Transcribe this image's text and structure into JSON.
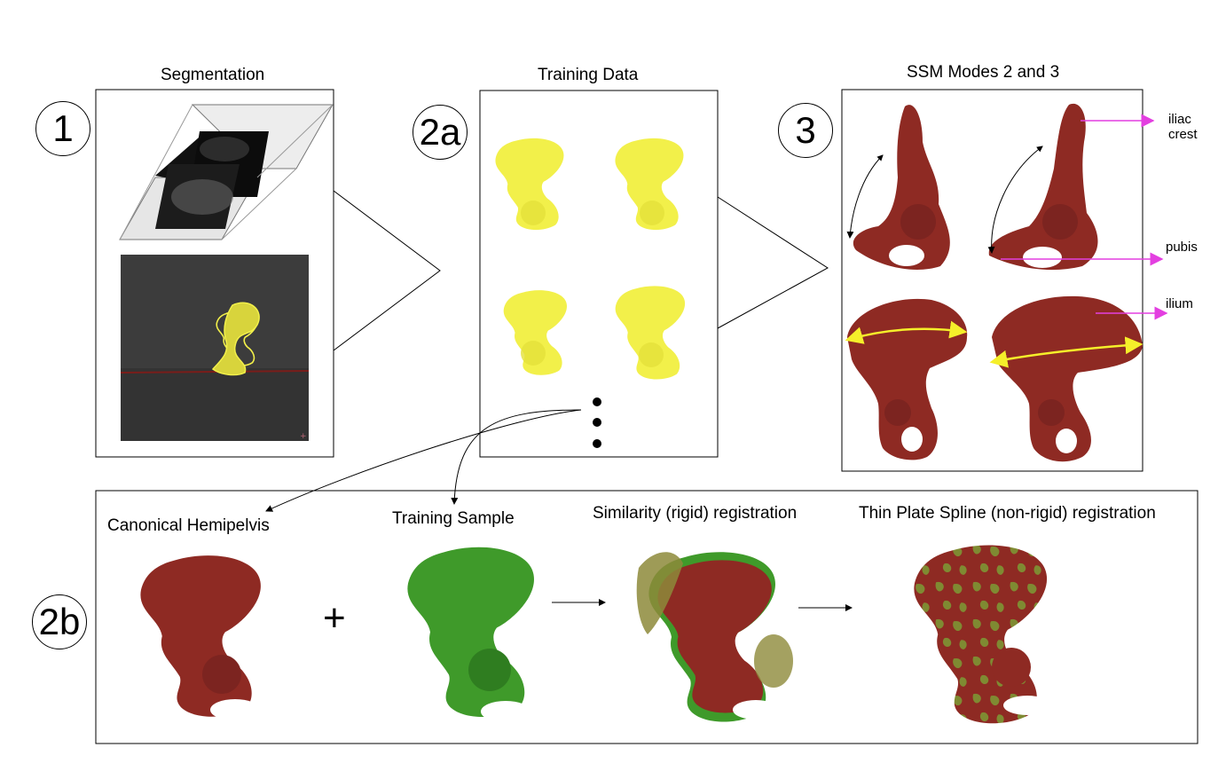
{
  "steps": {
    "step1": "1",
    "step2a": "2a",
    "step2b": "2b",
    "step3": "3"
  },
  "panels": {
    "segmentation": "Segmentation",
    "training_data": "Training Data",
    "ssm_modes": "SSM Modes 2 and 3"
  },
  "annotations": {
    "iliac_crest": "iliac\ncrest",
    "pubis": "pubis",
    "ilium": "ilium"
  },
  "pipeline": {
    "canonical": "Canonical Hemipelvis",
    "plus": "+",
    "training_sample": "Training Sample",
    "similarity": "Similarity (rigid) registration",
    "tps": "Thin Plate Spline (non-rigid) registration"
  },
  "colors": {
    "bone_red": "#8e2a23",
    "bone_yellow": "#f2f04a",
    "bone_green": "#3f9a2a",
    "blended_olive": "#8d8a3a",
    "arrow_magenta": "#e33fe0",
    "arrow_yellow": "#f5ef2a",
    "ct_background": "#3a3a3a"
  }
}
